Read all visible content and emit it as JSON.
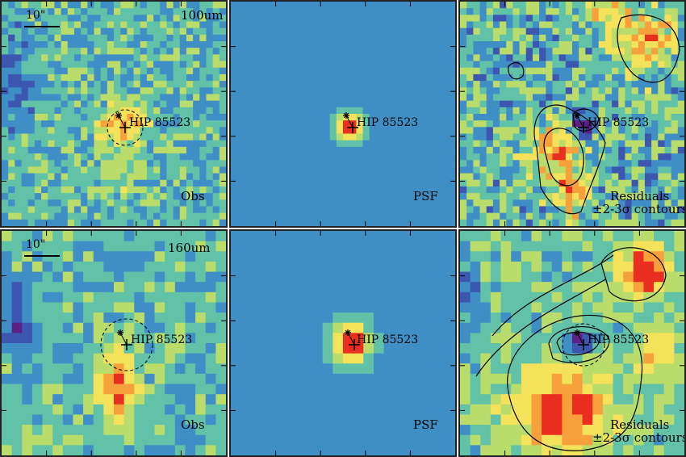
{
  "target_name": "HIP 85523",
  "scale_bar": "10\"",
  "rows": [
    {
      "band": "100um",
      "panels": [
        {
          "kind": "obs",
          "label": "Obs"
        },
        {
          "kind": "psf",
          "label": "PSF"
        },
        {
          "kind": "residual",
          "label_line1": "Residuals",
          "label_line2": "±2-3σ contours"
        }
      ]
    },
    {
      "band": "160um",
      "panels": [
        {
          "kind": "obs",
          "label": "Obs"
        },
        {
          "kind": "psf",
          "label": "PSF"
        },
        {
          "kind": "residual",
          "label_line1": "Residuals",
          "label_line2": "±2-3σ contours"
        }
      ]
    }
  ],
  "colormap": [
    "#5e1f87",
    "#3b57b0",
    "#3f8fc6",
    "#62c2a8",
    "#b9dc6a",
    "#f3e25a",
    "#f7a13c",
    "#ea2e20"
  ]
}
